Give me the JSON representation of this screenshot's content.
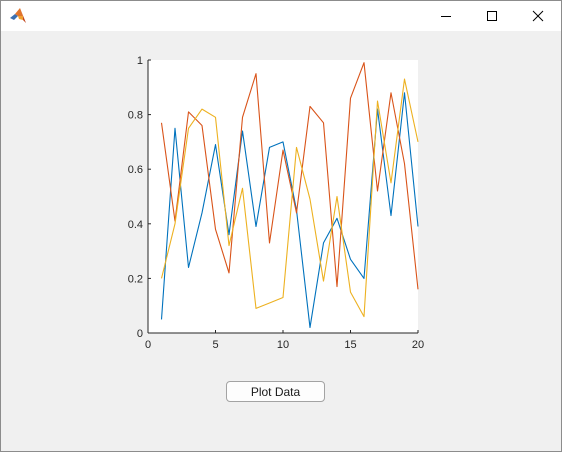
{
  "window": {
    "icon": "matlab-logo-icon",
    "controls": [
      "minimize-icon",
      "maximize-icon",
      "close-icon"
    ]
  },
  "plot_button": {
    "label": "Plot Data"
  },
  "chart_data": {
    "type": "line",
    "title": "",
    "xlabel": "",
    "ylabel": "",
    "xlim": [
      0,
      20
    ],
    "ylim": [
      0,
      1
    ],
    "xticks": [
      0,
      5,
      10,
      15,
      20
    ],
    "yticks": [
      0,
      0.2,
      0.4,
      0.6,
      0.8,
      1
    ],
    "xtick_labels": [
      "0",
      "5",
      "10",
      "15",
      "20"
    ],
    "ytick_labels": [
      "0",
      "0.2",
      "0.4",
      "0.6",
      "0.8",
      "1"
    ],
    "grid": false,
    "x": [
      1,
      2,
      3,
      4,
      5,
      6,
      7,
      8,
      9,
      10,
      11,
      12,
      13,
      14,
      15,
      16,
      17,
      18,
      19,
      20
    ],
    "series": [
      {
        "color": "#0072BD",
        "values": [
          0.05,
          0.75,
          0.24,
          0.44,
          0.69,
          0.36,
          0.74,
          0.39,
          0.68,
          0.7,
          0.45,
          0.02,
          0.33,
          0.42,
          0.27,
          0.2,
          0.82,
          0.43,
          0.88,
          0.39
        ]
      },
      {
        "color": "#D95319",
        "values": [
          0.77,
          0.41,
          0.81,
          0.76,
          0.38,
          0.22,
          0.79,
          0.95,
          0.33,
          0.67,
          0.44,
          0.83,
          0.77,
          0.17,
          0.86,
          0.99,
          0.52,
          0.88,
          0.62,
          0.16
        ]
      },
      {
        "color": "#EDB120",
        "values": [
          0.2,
          0.4,
          0.75,
          0.82,
          0.79,
          0.32,
          0.53,
          0.09,
          0.11,
          0.13,
          0.68,
          0.49,
          0.19,
          0.5,
          0.15,
          0.06,
          0.85,
          0.55,
          0.93,
          0.7
        ]
      }
    ]
  }
}
